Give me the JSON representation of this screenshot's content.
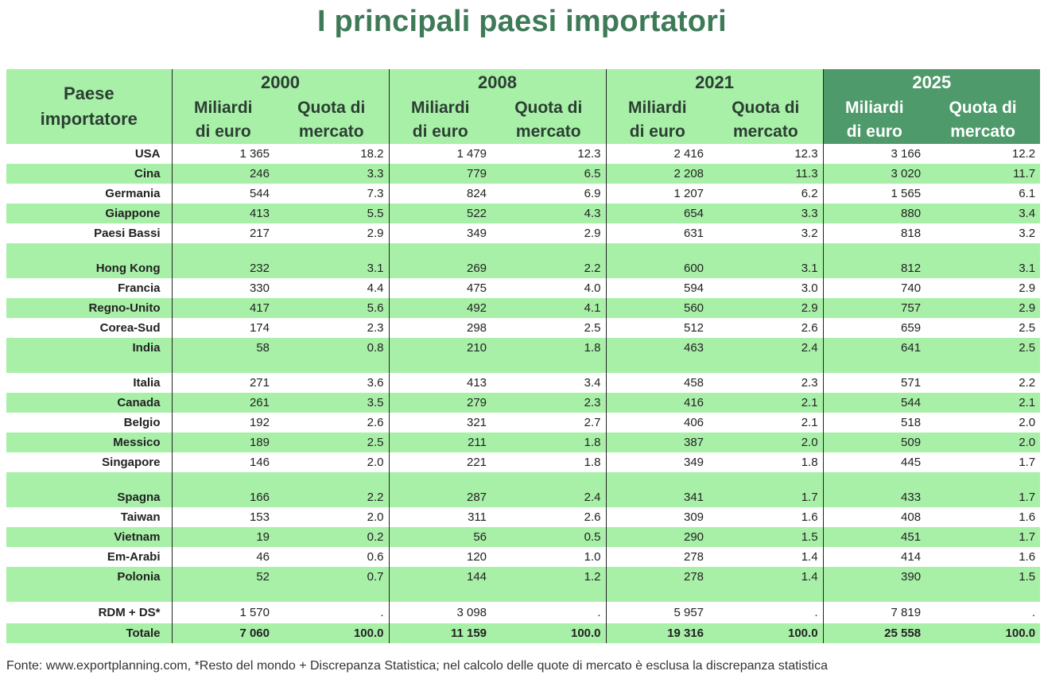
{
  "title": "I principali paesi importatori",
  "note": "Fonte: www.exportplanning.com, *Resto del mondo + Discrepanza Statistica; nel calcolo delle quote di mercato è esclusa la discrepanza statistica",
  "header": {
    "country_label_1": "Paese",
    "country_label_2": "importatore",
    "years": [
      "2000",
      "2008",
      "2021",
      "2025"
    ],
    "col_a_1": "Miliardi",
    "col_a_2": "di euro",
    "col_b_1": "Quota di",
    "col_b_2": "mercato"
  },
  "chart_data": {
    "type": "table",
    "highlight_year": "2025",
    "rows": [
      {
        "kind": "data",
        "country": "USA",
        "values": [
          "1 365",
          "18.2",
          "1 479",
          "12.3",
          "2 416",
          "12.3",
          "3 166",
          "12.2"
        ]
      },
      {
        "kind": "data",
        "country": "Cina",
        "values": [
          "246",
          "3.3",
          "779",
          "6.5",
          "2 208",
          "11.3",
          "3 020",
          "11.7"
        ]
      },
      {
        "kind": "data",
        "country": "Germania",
        "values": [
          "544",
          "7.3",
          "824",
          "6.9",
          "1 207",
          "6.2",
          "1 565",
          "6.1"
        ]
      },
      {
        "kind": "data",
        "country": "Giappone",
        "values": [
          "413",
          "5.5",
          "522",
          "4.3",
          "654",
          "3.3",
          "880",
          "3.4"
        ]
      },
      {
        "kind": "data",
        "country": "Paesi Bassi",
        "values": [
          "217",
          "2.9",
          "349",
          "2.9",
          "631",
          "3.2",
          "818",
          "3.2"
        ]
      },
      {
        "kind": "sep"
      },
      {
        "kind": "data",
        "country": "Hong Kong",
        "values": [
          "232",
          "3.1",
          "269",
          "2.2",
          "600",
          "3.1",
          "812",
          "3.1"
        ]
      },
      {
        "kind": "data",
        "country": "Francia",
        "values": [
          "330",
          "4.4",
          "475",
          "4.0",
          "594",
          "3.0",
          "740",
          "2.9"
        ]
      },
      {
        "kind": "data",
        "country": "Regno-Unito",
        "values": [
          "417",
          "5.6",
          "492",
          "4.1",
          "560",
          "2.9",
          "757",
          "2.9"
        ]
      },
      {
        "kind": "data",
        "country": "Corea-Sud",
        "values": [
          "174",
          "2.3",
          "298",
          "2.5",
          "512",
          "2.6",
          "659",
          "2.5"
        ]
      },
      {
        "kind": "data",
        "country": "India",
        "values": [
          "58",
          "0.8",
          "210",
          "1.8",
          "463",
          "2.4",
          "641",
          "2.5"
        ]
      },
      {
        "kind": "sep"
      },
      {
        "kind": "data",
        "country": "Italia",
        "values": [
          "271",
          "3.6",
          "413",
          "3.4",
          "458",
          "2.3",
          "571",
          "2.2"
        ]
      },
      {
        "kind": "data",
        "country": "Canada",
        "values": [
          "261",
          "3.5",
          "279",
          "2.3",
          "416",
          "2.1",
          "544",
          "2.1"
        ]
      },
      {
        "kind": "data",
        "country": "Belgio",
        "values": [
          "192",
          "2.6",
          "321",
          "2.7",
          "406",
          "2.1",
          "518",
          "2.0"
        ]
      },
      {
        "kind": "data",
        "country": "Messico",
        "values": [
          "189",
          "2.5",
          "211",
          "1.8",
          "387",
          "2.0",
          "509",
          "2.0"
        ]
      },
      {
        "kind": "data",
        "country": "Singapore",
        "values": [
          "146",
          "2.0",
          "221",
          "1.8",
          "349",
          "1.8",
          "445",
          "1.7"
        ]
      },
      {
        "kind": "sep"
      },
      {
        "kind": "data",
        "country": "Spagna",
        "values": [
          "166",
          "2.2",
          "287",
          "2.4",
          "341",
          "1.7",
          "433",
          "1.7"
        ]
      },
      {
        "kind": "data",
        "country": "Taiwan",
        "values": [
          "153",
          "2.0",
          "311",
          "2.6",
          "309",
          "1.6",
          "408",
          "1.6"
        ]
      },
      {
        "kind": "data",
        "country": "Vietnam",
        "values": [
          "19",
          "0.2",
          "56",
          "0.5",
          "290",
          "1.5",
          "451",
          "1.7"
        ]
      },
      {
        "kind": "data",
        "country": "Em-Arabi",
        "values": [
          "46",
          "0.6",
          "120",
          "1.0",
          "278",
          "1.4",
          "414",
          "1.6"
        ]
      },
      {
        "kind": "data",
        "country": "Polonia",
        "values": [
          "52",
          "0.7",
          "144",
          "1.2",
          "278",
          "1.4",
          "390",
          "1.5"
        ]
      },
      {
        "kind": "sep"
      },
      {
        "kind": "rdm",
        "country": "RDM + DS*",
        "values": [
          "1 570",
          ".",
          "3 098",
          ".",
          "5 957",
          ".",
          "7 819",
          "."
        ]
      },
      {
        "kind": "total",
        "country": "Totale",
        "values": [
          "7 060",
          "100.0",
          "11 159",
          "100.0",
          "19 316",
          "100.0",
          "25 558",
          "100.0"
        ]
      }
    ]
  }
}
